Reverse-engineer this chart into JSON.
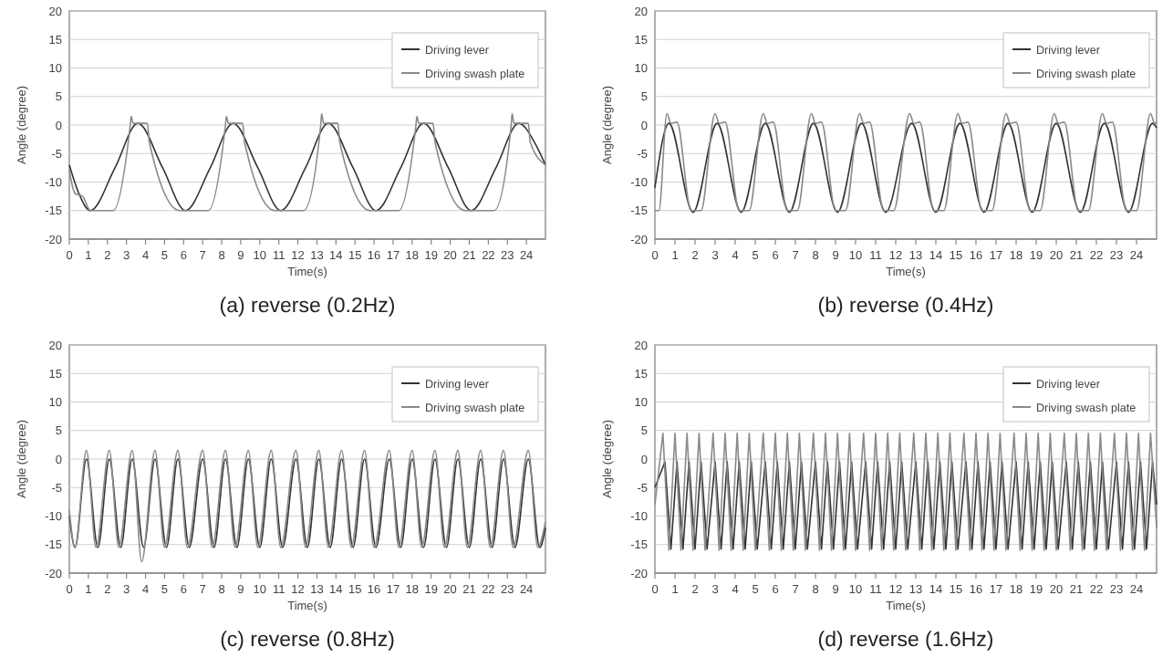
{
  "chart_data": [
    {
      "type": "line",
      "title": "(a) reverse (0.2Hz)",
      "xlabel": "Time(s)",
      "ylabel": "Angle (degree)",
      "xlim": [
        0,
        25
      ],
      "xticks": [
        0,
        1,
        2,
        3,
        4,
        5,
        6,
        7,
        8,
        9,
        10,
        11,
        12,
        13,
        14,
        15,
        16,
        17,
        18,
        19,
        20,
        21,
        22,
        23,
        24
      ],
      "ylim": [
        -20,
        20
      ],
      "yticks": [
        -20,
        -15,
        -10,
        -5,
        0,
        5,
        10,
        15,
        20
      ],
      "grid": "y",
      "legend": "top right",
      "series": [
        {
          "name": "Driving lever",
          "color": "#333333",
          "x": [
            0,
            0.5,
            1.1,
            2.4,
            3.6,
            4.9,
            6.1,
            7.4,
            8.6,
            9.9,
            11.1,
            12.4,
            13.6,
            14.9,
            16.1,
            17.4,
            18.6,
            19.9,
            21.1,
            22.4,
            23.6,
            24.5,
            25
          ],
          "values": [
            -7,
            -12,
            -15,
            -7.5,
            0.3,
            -7.5,
            -15,
            -7.5,
            0.3,
            -7.5,
            -15,
            -7.5,
            0.3,
            -7.5,
            -15,
            -7.5,
            0.3,
            -7.5,
            -15,
            -7.5,
            0.3,
            -3.5,
            -7
          ]
        },
        {
          "name": "Driving swash plate",
          "color": "#8a8a8a",
          "x": [
            0,
            0.3,
            0.7,
            1.1,
            2.3,
            3.2,
            3.25,
            3.35,
            4.1,
            4.2,
            5.8,
            7.3,
            8.2,
            8.25,
            8.35,
            9.1,
            9.2,
            10.8,
            12.3,
            13.2,
            13.25,
            13.35,
            14.1,
            14.2,
            15.8,
            17.3,
            18.2,
            18.25,
            18.35,
            19.1,
            19.2,
            20.8,
            22.3,
            23.2,
            23.25,
            23.35,
            24.1,
            24.2,
            25
          ],
          "values": [
            -8,
            -12,
            -12.5,
            -15,
            -15,
            0,
            1.5,
            0.3,
            0.3,
            -3,
            -15,
            -15,
            0,
            1.5,
            0.3,
            0.3,
            -3,
            -15,
            -15,
            0,
            2,
            0.3,
            0.3,
            -3,
            -15,
            -15,
            0,
            1.5,
            0.3,
            0.3,
            -3,
            -15,
            -15,
            0,
            2,
            0.3,
            0.3,
            -3,
            -7
          ]
        }
      ]
    },
    {
      "type": "line",
      "title": "(b) reverse (0.4Hz)",
      "xlabel": "Time(s)",
      "ylabel": "Angle (degree)",
      "xlim": [
        0,
        25
      ],
      "xticks": [
        0,
        1,
        2,
        3,
        4,
        5,
        6,
        7,
        8,
        9,
        10,
        11,
        12,
        13,
        14,
        15,
        16,
        17,
        18,
        19,
        20,
        21,
        22,
        23,
        24
      ],
      "ylim": [
        -20,
        20
      ],
      "yticks": [
        -20,
        -15,
        -10,
        -5,
        0,
        5,
        10,
        15,
        20
      ],
      "grid": "y",
      "legend": "top right",
      "series": [
        {
          "name": "Driving lever",
          "color": "#333333",
          "x": [
            0,
            0.7,
            1.9,
            3.1,
            4.3,
            5.5,
            6.7,
            7.9,
            9.1,
            10.3,
            11.5,
            12.8,
            14.0,
            15.2,
            16.4,
            17.6,
            18.8,
            20.0,
            21.2,
            22.4,
            23.6,
            24.8,
            25
          ],
          "values": [
            -11,
            0.3,
            -15.3,
            0.3,
            -15.3,
            0.3,
            -15.3,
            0.3,
            -15.3,
            0.3,
            -15.3,
            0.3,
            -15.3,
            0.3,
            -15.3,
            0.3,
            -15.3,
            0.3,
            -15.3,
            0.3,
            -15.3,
            0.3,
            -0.5
          ]
        },
        {
          "name": "Driving swash plate",
          "color": "#8a8a8a",
          "x": [
            0,
            0.2,
            0.6,
            0.8,
            1.1,
            1.8,
            2.3,
            3.0,
            3.2,
            3.5,
            4.2,
            4.7,
            5.4,
            5.6,
            5.9,
            6.6,
            7.1,
            7.8,
            8.0,
            8.3,
            9.0,
            9.5,
            10.2,
            10.4,
            10.7,
            11.4,
            11.9,
            12.7,
            12.9,
            13.2,
            13.9,
            14.4,
            15.1,
            15.3,
            15.6,
            16.3,
            16.8,
            17.5,
            17.7,
            18.0,
            18.7,
            19.2,
            19.9,
            20.1,
            20.4,
            21.1,
            21.6,
            22.3,
            22.5,
            22.8,
            23.5,
            24.0,
            24.7,
            24.9,
            25
          ],
          "values": [
            -15,
            -15,
            2,
            0.3,
            0.5,
            -15,
            -15,
            2,
            0.3,
            0.5,
            -15,
            -15,
            2,
            0.3,
            0.5,
            -15,
            -15,
            2,
            0.3,
            0.5,
            -15,
            -15,
            2,
            0.3,
            0.5,
            -15,
            -15,
            2,
            0.3,
            0.5,
            -15,
            -15,
            2,
            0.3,
            0.5,
            -15,
            -15,
            2,
            0.3,
            0.5,
            -15,
            -15,
            2,
            0.3,
            0.5,
            -15,
            -15,
            2,
            0.3,
            0.5,
            -15,
            -15,
            2,
            0.3,
            0.5
          ]
        }
      ]
    },
    {
      "type": "line",
      "title": "(c) reverse (0.8Hz)",
      "xlabel": "Time(s)",
      "ylabel": "Angle (degree)",
      "xlim": [
        0,
        25
      ],
      "xticks": [
        0,
        1,
        2,
        3,
        4,
        5,
        6,
        7,
        8,
        9,
        10,
        11,
        12,
        13,
        14,
        15,
        16,
        17,
        18,
        19,
        20,
        21,
        22,
        23,
        24
      ],
      "ylim": [
        -20,
        20
      ],
      "yticks": [
        -20,
        -15,
        -10,
        -5,
        0,
        5,
        10,
        15,
        20
      ],
      "grid": "y",
      "legend": "top right",
      "series": [
        {
          "name": "Driving lever",
          "color": "#333333",
          "x": [
            0,
            0.3,
            0.9,
            1.5,
            2.1,
            2.7,
            3.3,
            3.9,
            4.5,
            5.1,
            5.7,
            6.3,
            7.0,
            7.6,
            8.2,
            8.8,
            9.4,
            10.0,
            10.6,
            11.2,
            11.9,
            12.5,
            13.1,
            13.7,
            14.3,
            14.9,
            15.5,
            16.1,
            16.8,
            17.4,
            18.0,
            18.6,
            19.2,
            19.8,
            20.4,
            21.0,
            21.6,
            22.2,
            22.8,
            23.4,
            24.1,
            24.7,
            25
          ],
          "values": [
            -10,
            -15.5,
            0,
            -15.5,
            0,
            -15.5,
            0,
            -15.5,
            0,
            -15.5,
            0,
            -15.5,
            0,
            -15.5,
            0,
            -15.5,
            0,
            -15.5,
            0,
            -15.5,
            0,
            -15.5,
            0,
            -15.5,
            0,
            -15.5,
            0,
            -15.5,
            0,
            -15.5,
            0,
            -15.5,
            0,
            -15.5,
            0,
            -15.5,
            0,
            -15.5,
            0,
            -15.5,
            0,
            -15.5,
            -12
          ]
        },
        {
          "name": "Driving swash plate",
          "color": "#8a8a8a",
          "x": [
            0,
            0.3,
            0.9,
            1.4,
            2.1,
            2.6,
            3.3,
            3.8,
            4.5,
            5.0,
            5.7,
            6.2,
            7.0,
            7.5,
            8.2,
            8.7,
            9.4,
            9.9,
            10.6,
            11.1,
            11.9,
            12.4,
            13.1,
            13.6,
            14.3,
            14.8,
            15.5,
            16.0,
            16.8,
            17.3,
            18.0,
            18.5,
            19.2,
            19.7,
            20.4,
            20.9,
            21.6,
            22.1,
            22.8,
            23.3,
            24.1,
            24.6,
            25
          ],
          "values": [
            -9,
            -15.5,
            1.5,
            -15.5,
            1.5,
            -15.5,
            1.5,
            -18,
            1.5,
            -15.5,
            1.5,
            -15.5,
            1.5,
            -15.5,
            1.5,
            -15.5,
            1.5,
            -15.5,
            1.5,
            -15.5,
            1.5,
            -15.5,
            1.5,
            -15.5,
            1.5,
            -15.5,
            1.5,
            -15.5,
            1.5,
            -15.5,
            1.5,
            -15.5,
            1.5,
            -15.5,
            1.5,
            -15.5,
            1.5,
            -15.5,
            1.5,
            -15.5,
            1.5,
            -15.5,
            -11
          ]
        }
      ]
    },
    {
      "type": "line",
      "title": "(d) reverse (1.6Hz)",
      "xlabel": "Time(s)",
      "ylabel": "Angle (degree)",
      "xlim": [
        0,
        25
      ],
      "xticks": [
        0,
        1,
        2,
        3,
        4,
        5,
        6,
        7,
        8,
        9,
        10,
        11,
        12,
        13,
        14,
        15,
        16,
        17,
        18,
        19,
        20,
        21,
        22,
        23,
        24
      ],
      "ylim": [
        -20,
        20
      ],
      "yticks": [
        -20,
        -15,
        -10,
        -5,
        0,
        5,
        10,
        15,
        20
      ],
      "grid": "y",
      "legend": "top right",
      "series": [
        {
          "name": "Driving lever",
          "color": "#333333",
          "x": [
            0,
            0.5,
            0.8,
            1.1,
            1.4,
            1.7,
            2.0,
            2.3,
            2.6,
            3.0,
            3.3,
            3.6,
            3.9,
            4.2,
            4.5,
            4.8,
            5.1,
            5.5,
            5.8,
            6.1,
            6.4,
            6.7,
            7.0,
            7.3,
            7.6,
            8.0,
            8.3,
            8.6,
            8.9,
            9.2,
            9.5,
            9.8,
            10.1,
            10.5,
            10.8,
            11.1,
            11.4,
            11.7,
            12.0,
            12.3,
            12.6,
            13.0,
            13.3,
            13.6,
            13.9,
            14.2,
            14.5,
            14.8,
            15.1,
            15.5,
            15.8,
            16.1,
            16.4,
            16.7,
            17.0,
            17.3,
            17.6,
            18.0,
            18.3,
            18.6,
            18.9,
            19.2,
            19.5,
            19.8,
            20.1,
            20.5,
            20.8,
            21.1,
            21.4,
            21.7,
            22.0,
            22.3,
            22.6,
            23.0,
            23.3,
            23.6,
            23.9,
            24.2,
            24.5,
            24.8,
            25
          ],
          "values": [
            -5,
            -0.5,
            -15.8,
            -0.5,
            -15.8,
            -0.5,
            -15.8,
            -0.5,
            -15.8,
            -0.5,
            -15.8,
            -0.5,
            -15.8,
            -0.5,
            -15.8,
            -0.5,
            -15.8,
            -0.5,
            -15.8,
            -0.5,
            -15.8,
            -0.5,
            -15.8,
            -0.5,
            -15.8,
            -0.5,
            -15.8,
            -0.5,
            -15.8,
            -0.5,
            -15.8,
            -0.5,
            -15.8,
            -0.5,
            -15.8,
            -0.5,
            -15.8,
            -0.5,
            -15.8,
            -0.5,
            -15.8,
            -0.5,
            -15.8,
            -0.5,
            -15.8,
            -0.5,
            -15.8,
            -0.5,
            -15.8,
            -0.5,
            -15.8,
            -0.5,
            -15.8,
            -0.5,
            -15.8,
            -0.5,
            -15.8,
            -0.5,
            -15.8,
            -0.5,
            -15.8,
            -0.5,
            -15.8,
            -0.5,
            -15.8,
            -0.5,
            -15.8,
            -0.5,
            -15.8,
            -0.5,
            -15.8,
            -0.5,
            -15.8,
            -0.5,
            -15.8,
            -0.5,
            -15.8,
            -0.5,
            -15.8,
            -0.5,
            -8
          ]
        },
        {
          "name": "Driving swash plate",
          "color": "#8a8a8a",
          "x": [
            0,
            0.4,
            0.7,
            1.0,
            1.3,
            1.6,
            1.9,
            2.2,
            2.5,
            2.9,
            3.2,
            3.5,
            3.8,
            4.1,
            4.4,
            4.7,
            5.0,
            5.4,
            5.7,
            6.0,
            6.3,
            6.6,
            6.9,
            7.2,
            7.5,
            7.9,
            8.2,
            8.5,
            8.8,
            9.1,
            9.4,
            9.7,
            10.0,
            10.4,
            10.7,
            11.0,
            11.3,
            11.6,
            11.9,
            12.2,
            12.5,
            12.9,
            13.2,
            13.5,
            13.8,
            14.1,
            14.4,
            14.7,
            15.0,
            15.4,
            15.7,
            16.0,
            16.3,
            16.6,
            16.9,
            17.2,
            17.5,
            17.9,
            18.2,
            18.5,
            18.8,
            19.1,
            19.4,
            19.7,
            20.0,
            20.4,
            20.7,
            21.0,
            21.3,
            21.6,
            21.9,
            22.2,
            22.5,
            22.9,
            23.2,
            23.5,
            23.8,
            24.1,
            24.4,
            24.7,
            25
          ],
          "values": [
            -8,
            4.5,
            -16,
            4.5,
            -16,
            4.5,
            -16,
            4.5,
            -16,
            4.5,
            -16,
            4.5,
            -16,
            4.5,
            -16,
            4.5,
            -16,
            4.5,
            -16,
            4.5,
            -16,
            4.5,
            -16,
            4.5,
            -16,
            4.5,
            -16,
            4.5,
            -16,
            4.5,
            -16,
            4.5,
            -16,
            4.5,
            -16,
            4.5,
            -16,
            4.5,
            -16,
            4.5,
            -16,
            4.5,
            -16,
            4.5,
            -16,
            4.5,
            -16,
            4.5,
            -16,
            4.5,
            -16,
            4.5,
            -16,
            4.5,
            -16,
            4.5,
            -16,
            4.5,
            -16,
            4.5,
            -16,
            4.5,
            -16,
            4.5,
            -16,
            4.5,
            -16,
            4.5,
            -16,
            4.5,
            -16,
            4.5,
            -16,
            4.5,
            -16,
            4.5,
            -16,
            4.5,
            -16,
            4.5,
            -12
          ]
        }
      ]
    }
  ]
}
